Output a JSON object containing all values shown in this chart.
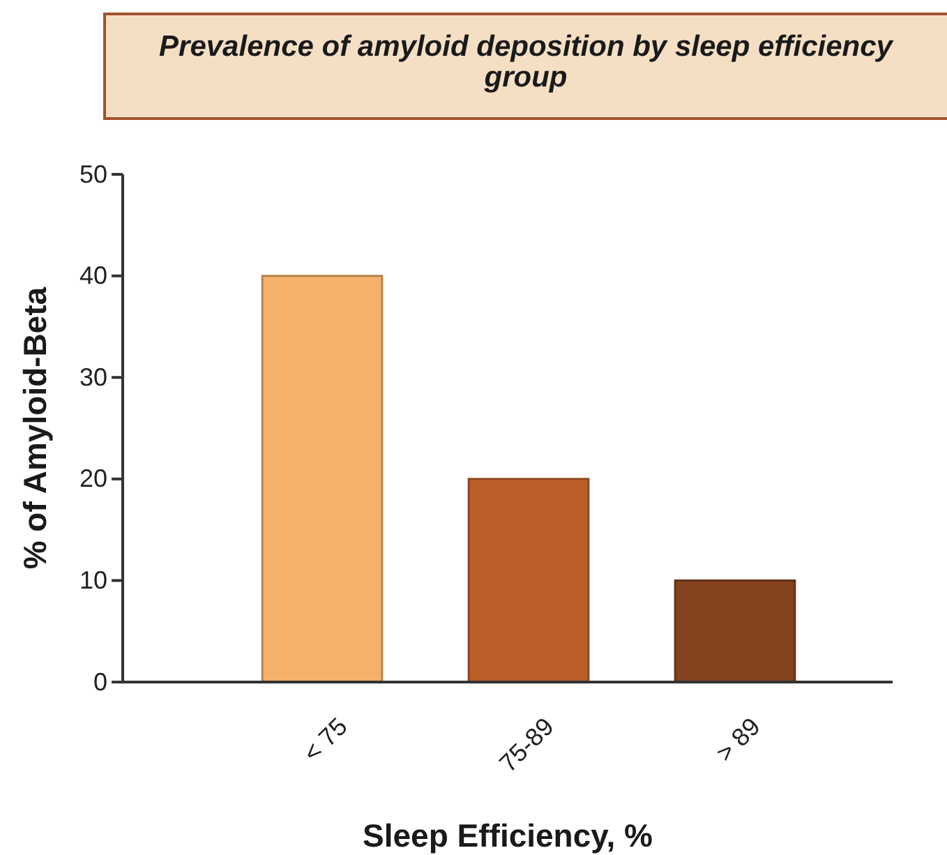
{
  "chart_data": {
    "type": "bar",
    "title": "Prevalence of amyloid deposition by sleep efficiency group",
    "xlabel": "Sleep Efficiency, %",
    "ylabel": "% of Amyloid-Beta",
    "categories": [
      "< 75",
      "75-89",
      "> 89"
    ],
    "values": [
      40,
      20,
      10
    ],
    "colors": [
      "#f5b06b",
      "#bb5e28",
      "#84421e"
    ],
    "ylim": [
      0,
      50
    ],
    "yticks": [
      0,
      10,
      20,
      30,
      40,
      50
    ],
    "grid": false
  }
}
